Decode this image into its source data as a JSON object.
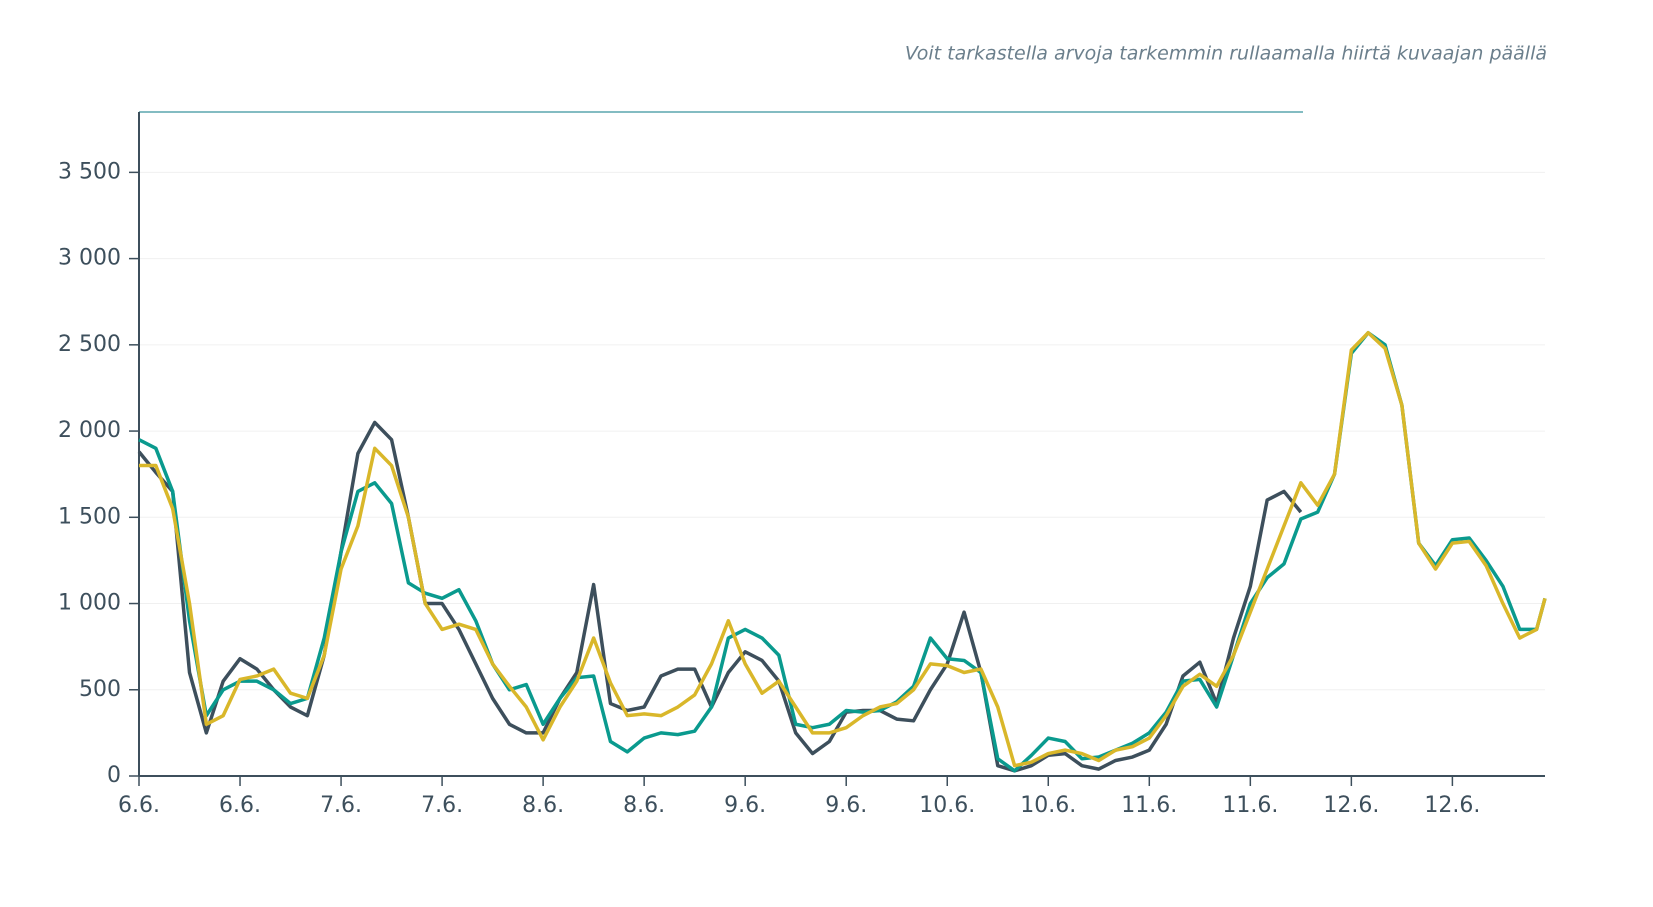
{
  "chart_data": {
    "type": "line",
    "subtitle": "Voit tarkastella arvoja tarkemmin rullaamalla hiirtä kuvaajan päällä",
    "x": [
      0,
      2,
      4,
      6,
      8,
      10,
      12,
      14,
      16,
      18,
      20,
      22,
      24,
      26,
      28,
      30,
      32,
      34,
      36,
      38,
      40,
      42,
      44,
      46,
      48,
      50,
      52,
      54,
      56,
      58,
      60,
      62,
      64,
      66,
      68,
      70,
      72,
      74,
      76,
      78,
      80,
      82,
      84,
      86,
      88,
      90,
      92,
      94,
      96,
      98,
      100,
      102,
      104,
      106,
      108,
      110,
      112,
      114,
      116,
      118,
      120,
      122,
      124,
      126,
      128,
      130,
      132,
      134,
      136,
      138,
      140,
      142,
      144,
      146,
      148,
      150,
      152,
      154,
      156,
      158,
      160,
      162,
      164,
      166,
      167
    ],
    "series": [
      {
        "color": "#3d4f5c",
        "values": [
          1880,
          1760,
          1650,
          600,
          250,
          550,
          680,
          620,
          500,
          400,
          350,
          700,
          1300,
          1870,
          2050,
          1950,
          1500,
          1000,
          1000,
          850,
          650,
          450,
          300,
          250,
          250,
          450,
          600,
          1110,
          420,
          380,
          400,
          580,
          620,
          620,
          400,
          600,
          720,
          670,
          550,
          250,
          130,
          200,
          370,
          380,
          380,
          330,
          320,
          500,
          650,
          950,
          600,
          60,
          30,
          60,
          120,
          130,
          60,
          40,
          90,
          110,
          150,
          300,
          580,
          660,
          420,
          800,
          1100,
          1600,
          1650,
          1530,
          null,
          null,
          null,
          null,
          null,
          null,
          null,
          null,
          null,
          null,
          null,
          null,
          null,
          null,
          null
        ]
      },
      {
        "color": "#0a9a8e",
        "values": [
          1950,
          1900,
          1650,
          900,
          350,
          500,
          550,
          550,
          500,
          420,
          450,
          800,
          1300,
          1650,
          1700,
          1580,
          1120,
          1060,
          1030,
          1080,
          900,
          650,
          500,
          530,
          300,
          450,
          570,
          580,
          200,
          140,
          220,
          250,
          240,
          260,
          400,
          800,
          850,
          800,
          700,
          300,
          280,
          300,
          380,
          370,
          380,
          430,
          520,
          800,
          680,
          670,
          600,
          100,
          30,
          120,
          220,
          200,
          100,
          110,
          150,
          190,
          250,
          370,
          550,
          560,
          400,
          700,
          1000,
          1150,
          1230,
          1490,
          1530,
          1750,
          2450,
          2570,
          2500,
          2150,
          1350,
          1220,
          1370,
          1380,
          1250,
          1100,
          850,
          850,
          1030
        ]
      },
      {
        "color": "#d9b72a",
        "values": [
          1800,
          1800,
          1550,
          1000,
          300,
          350,
          560,
          580,
          620,
          480,
          450,
          700,
          1200,
          1450,
          1900,
          1800,
          1500,
          1000,
          850,
          880,
          850,
          650,
          520,
          400,
          210,
          400,
          550,
          800,
          540,
          350,
          360,
          350,
          400,
          470,
          650,
          900,
          650,
          480,
          550,
          400,
          250,
          250,
          280,
          350,
          400,
          420,
          500,
          650,
          640,
          600,
          620,
          400,
          60,
          80,
          130,
          150,
          130,
          90,
          150,
          170,
          220,
          350,
          520,
          590,
          520,
          700,
          950,
          1200,
          1450,
          1700,
          1570,
          1750,
          2470,
          2570,
          2480,
          2150,
          1350,
          1200,
          1350,
          1360,
          1220,
          1000,
          800,
          850,
          1030
        ]
      }
    ],
    "xlim": [
      0,
      167
    ],
    "xticks": [
      {
        "value": 0,
        "label": "6.6."
      },
      {
        "value": 12,
        "label": "6.6."
      },
      {
        "value": 24,
        "label": "7.6."
      },
      {
        "value": 36,
        "label": "7.6."
      },
      {
        "value": 48,
        "label": "8.6."
      },
      {
        "value": 60,
        "label": "8.6."
      },
      {
        "value": 72,
        "label": "9.6."
      },
      {
        "value": 84,
        "label": "9.6."
      },
      {
        "value": 96,
        "label": "10.6."
      },
      {
        "value": 108,
        "label": "10.6."
      },
      {
        "value": 120,
        "label": "11.6."
      },
      {
        "value": 132,
        "label": "11.6."
      },
      {
        "value": 144,
        "label": "12.6."
      },
      {
        "value": 156,
        "label": "12.6."
      }
    ],
    "ylim": [
      0,
      3850
    ],
    "yticks": [
      0,
      500,
      {
        "value": 1000,
        "label": "1 000"
      },
      {
        "value": 1500,
        "label": "1 500"
      },
      {
        "value": 2000,
        "label": "2 000"
      },
      {
        "value": 2500,
        "label": "2 500"
      },
      {
        "value": 3000,
        "label": "3 000"
      },
      {
        "value": 3500,
        "label": "3 500"
      }
    ],
    "grid": true
  }
}
